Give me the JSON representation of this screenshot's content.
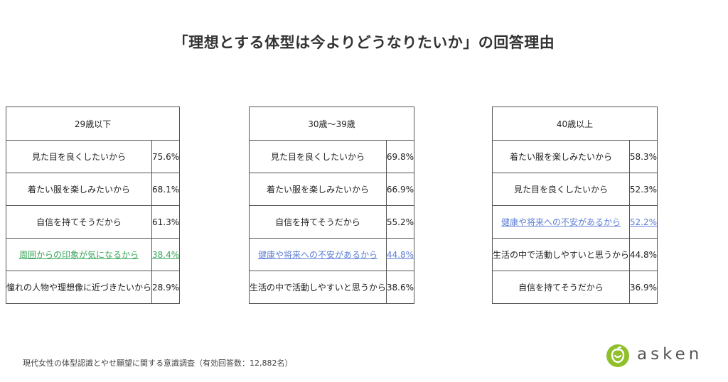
{
  "title": "「理想とする体型は今よりどうなりたいか」の回答理由",
  "footer": "現代女性の体型認識とやせ願望に関する意識調査（有効回答数：12,882名）",
  "brand": "asken",
  "colors": {
    "highlight_green": "#3aa55a",
    "highlight_blue": "#5f7fd6",
    "border": "#555555"
  },
  "chart_data": {
    "type": "table",
    "unit": "%",
    "panels": [
      {
        "header": "29歳以下",
        "rows": [
          {
            "label": "見た目を良くしたいから",
            "value": "75.6%"
          },
          {
            "label": "着たい服を楽しみたいから",
            "value": "68.1%"
          },
          {
            "label": "自信を持てそうだから",
            "value": "61.3%"
          },
          {
            "label": "周囲からの印象が気になるから",
            "value": "38.4%",
            "highlight": "#3aa55a"
          },
          {
            "label": "憧れの人物や理想像に近づきたいから",
            "value": "28.9%"
          }
        ]
      },
      {
        "header": "30歳〜39歳",
        "rows": [
          {
            "label": "見た目を良くしたいから",
            "value": "69.8%"
          },
          {
            "label": "着たい服を楽しみたいから",
            "value": "66.9%"
          },
          {
            "label": "自信を持てそうだから",
            "value": "55.2%"
          },
          {
            "label": "健康や将来への不安があるから",
            "value": "44.8%",
            "highlight": "#5f7fd6"
          },
          {
            "label": "生活の中で活動しやすいと思うから",
            "value": "38.6%"
          }
        ]
      },
      {
        "header": "40歳以上",
        "rows": [
          {
            "label": "着たい服を楽しみたいから",
            "value": "58.3%"
          },
          {
            "label": "見た目を良くしたいから",
            "value": "52.3%"
          },
          {
            "label": "健康や将来への不安があるから",
            "value": "52.2%",
            "highlight": "#5f7fd6"
          },
          {
            "label": "生活の中で活動しやすいと思うから",
            "value": "44.8%"
          },
          {
            "label": "自信を持てそうだから",
            "value": "36.9%"
          }
        ]
      }
    ]
  }
}
